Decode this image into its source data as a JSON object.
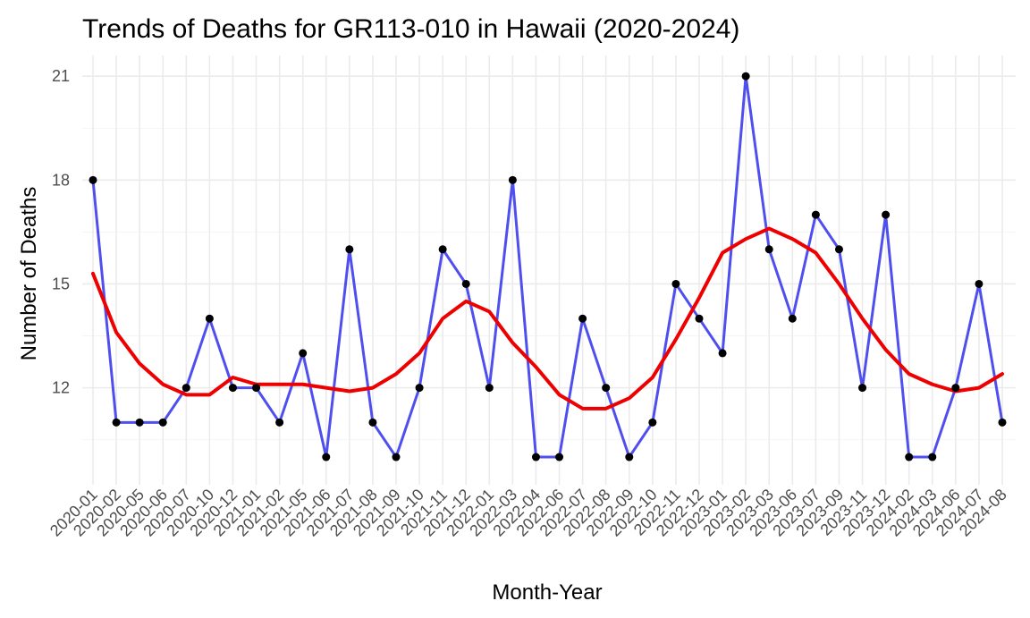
{
  "chart_data": {
    "type": "line",
    "title": "Trends of Deaths for GR113-010 in Hawaii (2020-2024)",
    "xlabel": "Month-Year",
    "ylabel": "Number of Deaths",
    "ylim": [
      9.2,
      21.6
    ],
    "yticks": [
      12,
      15,
      18,
      21
    ],
    "grid": true,
    "legend": "none",
    "categories": [
      "2020-01",
      "2020-02",
      "2020-05",
      "2020-06",
      "2020-07",
      "2020-10",
      "2020-12",
      "2021-01",
      "2021-02",
      "2021-05",
      "2021-06",
      "2021-07",
      "2021-08",
      "2021-09",
      "2021-10",
      "2021-11",
      "2021-12",
      "2022-01",
      "2022-03",
      "2022-04",
      "2022-06",
      "2022-07",
      "2022-08",
      "2022-09",
      "2022-10",
      "2022-11",
      "2022-12",
      "2023-01",
      "2023-02",
      "2023-03",
      "2023-06",
      "2023-07",
      "2023-09",
      "2023-11",
      "2023-12",
      "2024-02",
      "2024-03",
      "2024-06",
      "2024-07",
      "2024-08"
    ],
    "series": [
      {
        "kind": "observed",
        "color": "#4f4ff0",
        "values": [
          18,
          11,
          11,
          11,
          12,
          14,
          12,
          12,
          11,
          13,
          10,
          16,
          11,
          10,
          12,
          16,
          15,
          12,
          18,
          10,
          10,
          14,
          12,
          10,
          11,
          15,
          14,
          13,
          21,
          16,
          14,
          17,
          16,
          12,
          17,
          10,
          10,
          12,
          15,
          11
        ]
      },
      {
        "kind": "smoothed",
        "color": "#ee0000",
        "values": [
          15.3,
          13.6,
          12.7,
          12.1,
          11.8,
          11.8,
          12.3,
          12.1,
          12.1,
          12.1,
          12.0,
          11.9,
          12.0,
          12.4,
          13.0,
          14.0,
          14.5,
          14.2,
          13.3,
          12.6,
          11.8,
          11.4,
          11.4,
          11.7,
          12.3,
          13.4,
          14.6,
          15.9,
          16.3,
          16.6,
          16.3,
          15.9,
          15.0,
          14.0,
          13.1,
          12.4,
          12.1,
          11.9,
          12.0,
          12.4
        ]
      }
    ]
  }
}
